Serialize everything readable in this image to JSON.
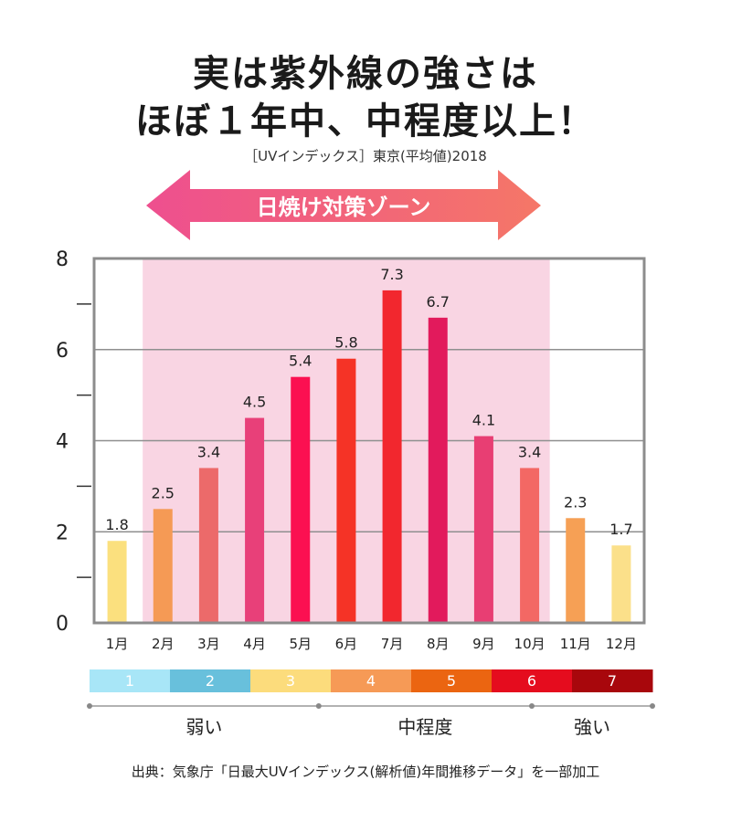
{
  "header": {
    "title_line1": "実は紫外線の強さは",
    "title_line2": "ほぼ１年中、中程度以上！",
    "subtitle": "［UVインデックス］東京(平均値)2018"
  },
  "zone_label": "日焼け対策ゾーン",
  "chart_data": {
    "type": "bar",
    "categories": [
      "1月",
      "2月",
      "3月",
      "4月",
      "5月",
      "6月",
      "7月",
      "8月",
      "9月",
      "10月",
      "11月",
      "12月"
    ],
    "values": [
      1.8,
      2.5,
      3.4,
      4.5,
      5.4,
      5.8,
      7.3,
      6.7,
      4.1,
      3.4,
      2.3,
      1.7
    ],
    "value_labels": [
      "1.8",
      "2.5",
      "3.4",
      "4.5",
      "5.4",
      "5.8",
      "7.3",
      "6.7",
      "4.1",
      "3.4",
      "2.3",
      "1.7"
    ],
    "ylim": [
      0,
      8
    ],
    "y_ticks": [
      "0",
      "2",
      "4",
      "6",
      "8"
    ],
    "bar_colors": [
      "#fbe07e",
      "#f59a55",
      "#ec6a6a",
      "#e84079",
      "#fb1051",
      "#f53326",
      "#f2272e",
      "#e21a5c",
      "#e83e73",
      "#f36864",
      "#f6a055",
      "#fbe08a"
    ],
    "zone_months": [
      "2月",
      "10月"
    ],
    "zone_color": "#f9d5e3",
    "grid": true
  },
  "legend": {
    "levels": [
      {
        "label": "1",
        "color": "#a8e6f7"
      },
      {
        "label": "2",
        "color": "#68c0dc"
      },
      {
        "label": "3",
        "color": "#fcdc7c"
      },
      {
        "label": "4",
        "color": "#f69a56"
      },
      {
        "label": "5",
        "color": "#eb6511"
      },
      {
        "label": "6",
        "color": "#e50c1e"
      },
      {
        "label": "7",
        "color": "#a8070c"
      }
    ],
    "categories": [
      "弱い",
      "中程度",
      "強い"
    ]
  },
  "footer": "出典：気象庁「日最大UVインデックス(解析値)年間推移データ」を一部加工"
}
